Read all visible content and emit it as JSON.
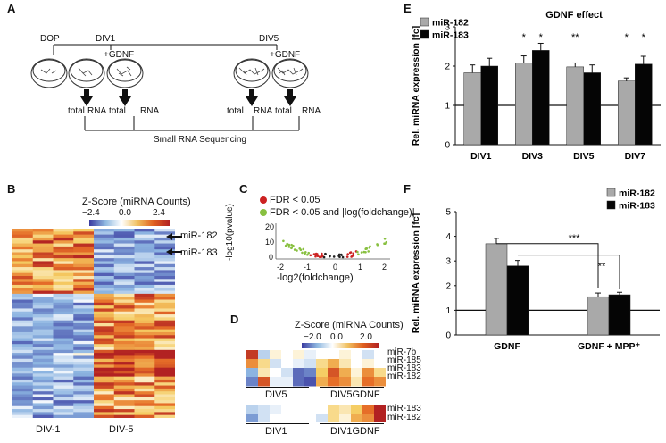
{
  "panels": {
    "A": "A",
    "B": "B",
    "C": "C",
    "D": "D",
    "E": "E",
    "F": "F"
  },
  "panel_a": {
    "stages": [
      "DOP",
      "DIV1",
      "DIV5"
    ],
    "gdnf_label_1": "+GDNF",
    "gdnf_label_2": "+GDNF",
    "rna_labels": [
      "total",
      "RNA",
      "total",
      "RNA",
      "total",
      "RNA",
      "total",
      "RNA"
    ],
    "sequencing": "Small  RNA  Sequencing"
  },
  "panel_b": {
    "title": "Z-Score (miRNA Counts)",
    "scale": [
      "−2.4",
      "0.0",
      "2.4"
    ],
    "markers": [
      "miR-182",
      "miR-183"
    ],
    "xlabels": [
      "DIV-1",
      "DIV-5"
    ]
  },
  "panel_c": {
    "legend": [
      "FDR < 0.05",
      "FDR < 0.05 and |log(foldchange)|"
    ],
    "ylabel": "-log10(pvalue)",
    "xlabel": "-log2(foldchange)",
    "xticks": [
      "-2",
      "-1",
      "0",
      "1",
      "2"
    ],
    "yticks": [
      "0",
      "10",
      "20"
    ]
  },
  "panel_d": {
    "title": "Z-Score (miRNA Counts)",
    "scale": [
      "−2.0",
      "0.0",
      "2.0"
    ],
    "top_rows": [
      "miR-7b",
      "miR-185",
      "miR-183",
      "miR-182"
    ],
    "top_groups": [
      "DIV5",
      "DIV5GDNF"
    ],
    "bottom_rows": [
      "miR-183",
      "miR-182"
    ],
    "bottom_groups": [
      "DIV1",
      "DIV1GDNF"
    ]
  },
  "colors": {
    "gray": "#a9a9a9",
    "black": "#050505",
    "low": "#3a3aa0",
    "high": "#b22222"
  },
  "chart_data": [
    {
      "type": "bar",
      "panel": "E",
      "title": "GDNF effect",
      "categories": [
        "DIV1",
        "DIV3",
        "DIV5",
        "DIV7"
      ],
      "series": [
        {
          "name": "miR-182",
          "values": [
            1.83,
            2.08,
            1.98,
            1.62
          ],
          "errors": [
            0.2,
            0.18,
            0.1,
            0.08
          ]
        },
        {
          "name": "miR-183",
          "values": [
            2.0,
            2.4,
            1.83,
            2.05
          ],
          "errors": [
            0.2,
            0.18,
            0.2,
            0.2
          ]
        }
      ],
      "significance": [
        [
          "",
          ""
        ],
        [
          "*",
          "*"
        ],
        [
          "**",
          ""
        ],
        [
          "*",
          "*"
        ]
      ],
      "ylabel": "Rel. miRNA expression [fc]",
      "yticks": [
        "0",
        "1",
        "2",
        "3"
      ],
      "ylim": [
        0,
        3
      ],
      "reference_line": 1
    },
    {
      "type": "bar",
      "panel": "F",
      "categories": [
        "GDNF",
        "GDNF + MPP⁺"
      ],
      "series": [
        {
          "name": "miR-182",
          "values": [
            3.7,
            1.55
          ],
          "errors": [
            0.22,
            0.15
          ]
        },
        {
          "name": "miR-183",
          "values": [
            2.8,
            1.63
          ],
          "errors": [
            0.22,
            0.1
          ]
        }
      ],
      "significance": [
        "***",
        "**"
      ],
      "ylabel": "Rel. miRNA expression [fc]",
      "yticks": [
        "0",
        "1",
        "2",
        "3",
        "4",
        "5"
      ],
      "ylim": [
        0,
        5
      ],
      "reference_line": 1
    }
  ]
}
